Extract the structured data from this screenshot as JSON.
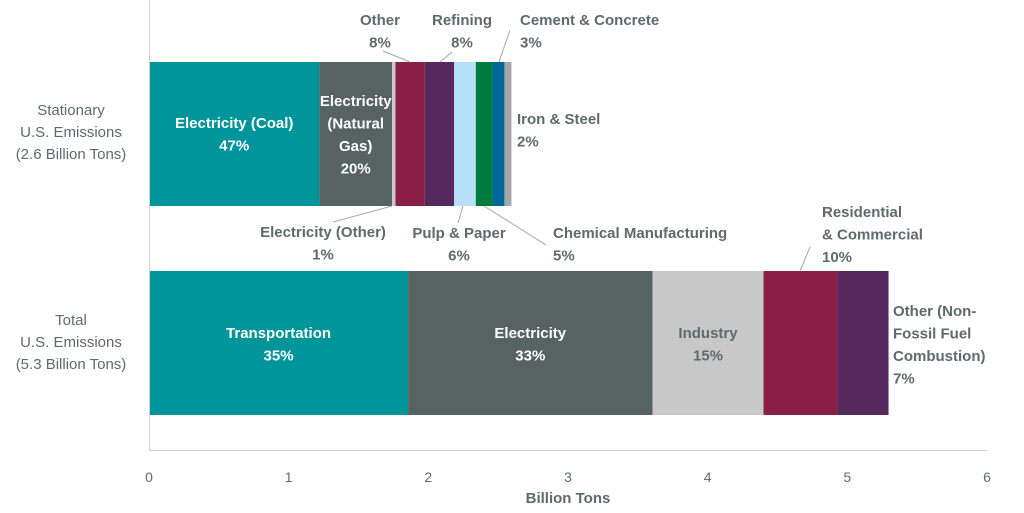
{
  "chart_data": {
    "type": "bar",
    "orientation": "horizontal",
    "stacked": true,
    "xlabel": "Billion Tons",
    "xlim": [
      0,
      6
    ],
    "xticks": [
      "0",
      "1",
      "2",
      "3",
      "4",
      "5",
      "6"
    ],
    "grid": false,
    "legend": "none",
    "categories": [
      "Stationary\nU.S. Emissions\n(2.6 Billion Tons)",
      "Total\nU.S. Emissions\n(5.3 Billion Tons)"
    ],
    "bars": [
      {
        "segments": [
          {
            "label": "Electricity (Coal)",
            "pct": "47%",
            "value": 1.22,
            "color": "#00959b",
            "text_color": "#ffffff"
          },
          {
            "label": "Electricity\n(Natural\nGas)",
            "pct": "20%",
            "value": 0.52,
            "color": "#566360",
            "text_color": "#ffffff"
          },
          {
            "label": "Electricity (Other)",
            "pct": "1%",
            "value": 0.025,
            "color": "#c8c8c8",
            "text_color": "#5f6b69"
          },
          {
            "label": "Other",
            "pct": "8%",
            "value": 0.21,
            "color": "#8a1f45",
            "text_color": "#5f6b69"
          },
          {
            "label": "Refining",
            "pct": "8%",
            "value": 0.21,
            "color": "#55295d",
            "text_color": "#5f6b69"
          },
          {
            "label": "Pulp & Paper",
            "pct": "6%",
            "value": 0.155,
            "color": "#b5e0f6",
            "text_color": "#5f6b69"
          },
          {
            "label": "Chemical Manufacturing",
            "pct": "5%",
            "value": 0.12,
            "color": "#007a3d",
            "text_color": "#5f6b69"
          },
          {
            "label": "Cement & Concrete",
            "pct": "3%",
            "value": 0.085,
            "color": "#00679a",
            "text_color": "#5f6b69"
          },
          {
            "label": "Iron & Steel",
            "pct": "2%",
            "value": 0.05,
            "color": "#a6a6a6",
            "text_color": "#5f6b69"
          }
        ]
      },
      {
        "segments": [
          {
            "label": "Transportation",
            "pct": "35%",
            "value": 1.855,
            "color": "#00959b",
            "text_color": "#ffffff"
          },
          {
            "label": "Electricity",
            "pct": "33%",
            "value": 1.75,
            "color": "#566360",
            "text_color": "#ffffff"
          },
          {
            "label": "Industry",
            "pct": "15%",
            "value": 0.795,
            "color": "#c8c8c8",
            "text_color": "#5f6b69"
          },
          {
            "label": "Residential\n& Commercial",
            "pct": "10%",
            "value": 0.53,
            "color": "#8a1f45",
            "text_color": "#5f6b69"
          },
          {
            "label": "Other (Non-\nFossil Fuel\nCombustion)",
            "pct": "7%",
            "value": 0.365,
            "color": "#55295d",
            "text_color": "#5f6b69"
          }
        ]
      }
    ]
  }
}
